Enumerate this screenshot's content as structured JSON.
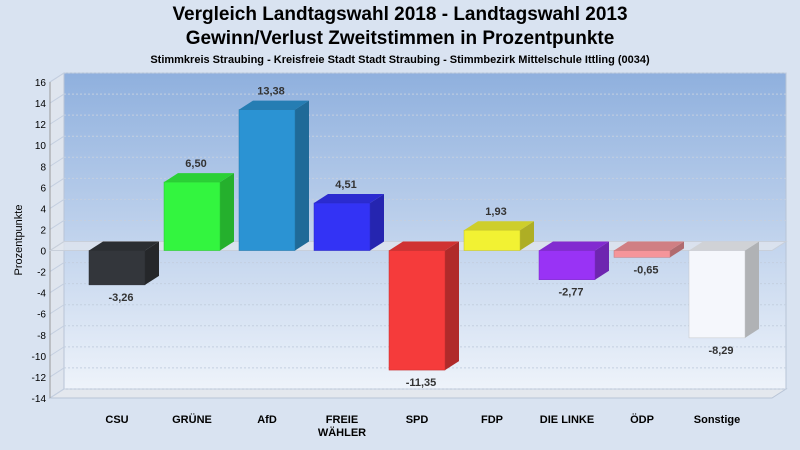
{
  "header": {
    "title1": "Vergleich Landtagswahl 2018 - Landtagswahl 2013",
    "title2": "Gewinn/Verlust Zweitstimmen in Prozentpunkte",
    "subtitle": "Stimmkreis Straubing - Kreisfreie Stadt Stadt Straubing - Stimmbezirk Mittelschule Ittling (0034)"
  },
  "chart_data": {
    "type": "bar",
    "title": "Vergleich Landtagswahl 2018 - Landtagswahl 2013",
    "subtitle": "Gewinn/Verlust Zweitstimmen in Prozentpunkte",
    "ylabel": "Prozentpunkte",
    "xlabel": "",
    "ylim": [
      -14,
      16
    ],
    "yticks": [
      16,
      14,
      12,
      10,
      8,
      6,
      4,
      2,
      0,
      -2,
      -4,
      -6,
      -8,
      -10,
      -12,
      -14
    ],
    "grid": true,
    "categories": [
      "CSU",
      "GRÜNE",
      "AfD",
      "FREIE WÄHLER",
      "SPD",
      "FDP",
      "DIE LINKE",
      "ÖDP",
      "Sonstige"
    ],
    "category_lines": [
      [
        "CSU"
      ],
      [
        "GRÜNE"
      ],
      [
        "AfD"
      ],
      [
        "FREIE",
        "WÄHLER"
      ],
      [
        "SPD"
      ],
      [
        "FDP"
      ],
      [
        "DIE LINKE"
      ],
      [
        "ÖDP"
      ],
      [
        "Sonstige"
      ]
    ],
    "values": [
      -3.26,
      6.5,
      13.38,
      4.51,
      -11.35,
      1.93,
      -2.77,
      -0.65,
      -8.29
    ],
    "value_labels": [
      "-3,26",
      "6,50",
      "13,38",
      "4,51",
      "-11,35",
      "1,93",
      "-2,77",
      "-0,65",
      "-8,29"
    ],
    "colors": [
      "#33363b",
      "#33f53f",
      "#2b93d3",
      "#3333f5",
      "#f53b3b",
      "#f2f233",
      "#9933f5",
      "#f5959a",
      "#f5f7fc"
    ]
  }
}
